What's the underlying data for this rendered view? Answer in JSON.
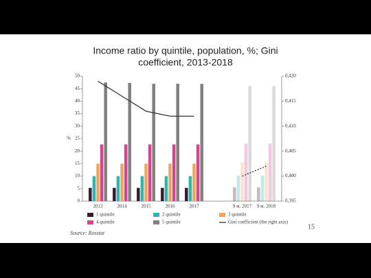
{
  "title": "Income ratio by quintile, population, %; Gini coefficient, 2013-2018",
  "chart_data": {
    "type": "bar",
    "categories": [
      "2013",
      "2014",
      "2015",
      "2016",
      "2017",
      null,
      "9 м. 2017",
      "9 м. 2018"
    ],
    "y_label": "%",
    "series": [
      {
        "name": "1 quintile",
        "color": "#3b1a2e",
        "values": [
          5.3,
          5.3,
          5.3,
          5.3,
          5.3,
          null,
          5.5,
          5.5
        ]
      },
      {
        "name": "2 quintile",
        "color": "#2ab7b0",
        "values": [
          10,
          10,
          10,
          10,
          10,
          null,
          10.2,
          10.2
        ]
      },
      {
        "name": "3 quintile",
        "color": "#f5a35a",
        "values": [
          15,
          15,
          15,
          15,
          15,
          null,
          15.5,
          15.5
        ]
      },
      {
        "name": "4 quintile",
        "color": "#d6448e",
        "values": [
          22.7,
          22.7,
          22.7,
          22.7,
          22.7,
          null,
          23,
          23
        ]
      },
      {
        "name": "5 quintile",
        "color": "#808080",
        "values": [
          47.5,
          47.3,
          47,
          47,
          46.9,
          null,
          46,
          46
        ]
      },
      {
        "name": "Gini coefficient (the right axis)",
        "color": "#333333",
        "type": "line",
        "axis": "y2",
        "values": [
          0.419,
          0.416,
          0.413,
          0.412,
          0.412,
          null,
          0.4,
          0.402
        ]
      }
    ],
    "ylim": [
      0,
      50
    ],
    "yticks": [
      0,
      5,
      10,
      15,
      20,
      25,
      30,
      35,
      40,
      45,
      50
    ],
    "y2lim": [
      0.395,
      0.42
    ],
    "y2ticks": [
      {
        "value": 0.395,
        "label": "0,395"
      },
      {
        "value": 0.4,
        "label": "0,400"
      },
      {
        "value": 0.405,
        "label": "0,405"
      },
      {
        "value": 0.41,
        "label": "0,410"
      },
      {
        "value": 0.415,
        "label": "0,415"
      },
      {
        "value": 0.42,
        "label": "0,420"
      }
    ],
    "grid": false
  },
  "source": "Source: Rosstat",
  "page_number": "15"
}
